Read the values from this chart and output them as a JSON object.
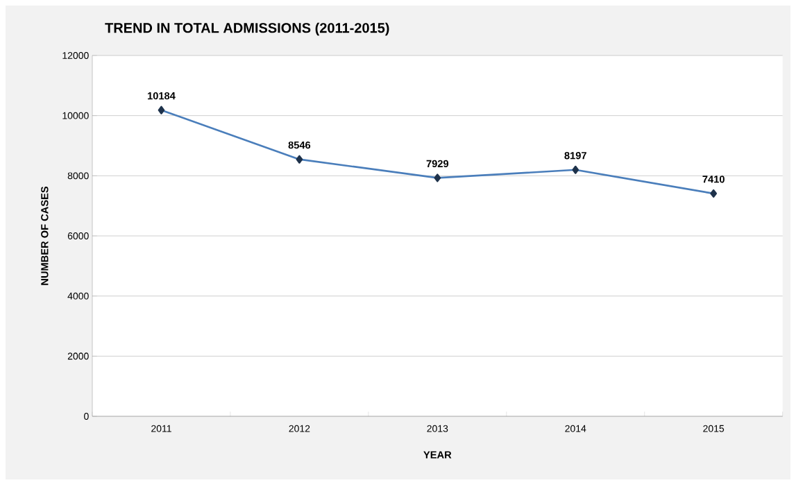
{
  "chart_data": {
    "type": "line",
    "title": "TREND IN TOTAL ADMISSIONS (2011-2015)",
    "xlabel": "YEAR",
    "ylabel": "NUMBER OF CASES",
    "categories": [
      "2011",
      "2012",
      "2013",
      "2014",
      "2015"
    ],
    "values": [
      10184,
      8546,
      7929,
      8197,
      7410
    ],
    "color": "#4a7ebb",
    "ylim": [
      0,
      12000
    ],
    "yticks": [
      0,
      2000,
      4000,
      6000,
      8000,
      10000,
      12000
    ],
    "grid": "y",
    "marker": "diamond",
    "line_style": "solid",
    "data_labels": true
  }
}
